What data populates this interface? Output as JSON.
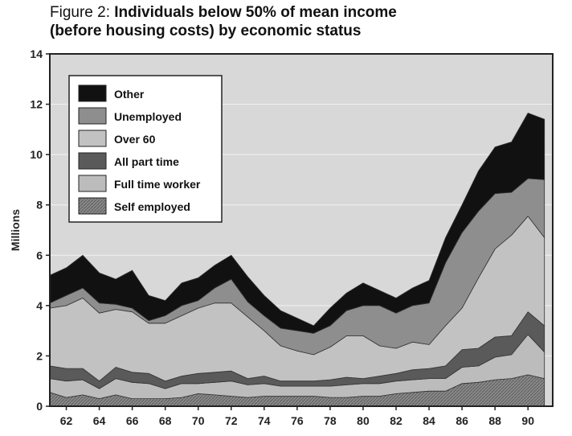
{
  "title": {
    "prefix": "Figure 2: ",
    "line1": "Individuals below 50% of mean income",
    "line2": "(before housing costs) by economic status"
  },
  "chart_data": {
    "type": "area",
    "stacked": true,
    "ylabel": "Millions",
    "xlabel": "",
    "ylim": [
      0,
      14
    ],
    "yticks": [
      0,
      2,
      4,
      6,
      8,
      10,
      12,
      14
    ],
    "xlim": [
      1961,
      1991.5
    ],
    "xtick_values": [
      1962,
      1964,
      1966,
      1968,
      1970,
      1972,
      1974,
      1976,
      1978,
      1980,
      1982,
      1984,
      1986,
      1988,
      1990
    ],
    "xtick_labels": [
      "62",
      "64",
      "66",
      "68",
      "70",
      "72",
      "74",
      "76",
      "78",
      "80",
      "82",
      "84",
      "86",
      "88",
      "90"
    ],
    "grid": true,
    "legend_position": "top-left",
    "x": [
      1961,
      1962,
      1963,
      1964,
      1965,
      1966,
      1967,
      1968,
      1969,
      1970,
      1971,
      1972,
      1973,
      1974,
      1975,
      1976,
      1977,
      1978,
      1979,
      1980,
      1981,
      1982,
      1983,
      1984,
      1985,
      1986,
      1987,
      1988,
      1989,
      1990,
      1991
    ],
    "series": [
      {
        "name": "Self employed",
        "color": "#7d7d7d",
        "values": [
          0.55,
          0.35,
          0.45,
          0.3,
          0.45,
          0.3,
          0.3,
          0.3,
          0.35,
          0.5,
          0.45,
          0.4,
          0.35,
          0.4,
          0.4,
          0.4,
          0.4,
          0.35,
          0.35,
          0.4,
          0.4,
          0.5,
          0.55,
          0.6,
          0.6,
          0.9,
          0.95,
          1.05,
          1.1,
          1.25,
          1.1
        ]
      },
      {
        "name": "Full time worker",
        "color": "#bcbcbc",
        "values": [
          0.55,
          0.65,
          0.6,
          0.4,
          0.65,
          0.65,
          0.6,
          0.4,
          0.55,
          0.4,
          0.5,
          0.6,
          0.5,
          0.5,
          0.4,
          0.4,
          0.4,
          0.45,
          0.5,
          0.5,
          0.5,
          0.5,
          0.5,
          0.5,
          0.5,
          0.65,
          0.65,
          0.9,
          0.95,
          1.6,
          1.05
        ]
      },
      {
        "name": "All part time",
        "color": "#5a5a5a",
        "values": [
          0.5,
          0.5,
          0.45,
          0.3,
          0.45,
          0.4,
          0.4,
          0.3,
          0.3,
          0.4,
          0.4,
          0.4,
          0.25,
          0.3,
          0.2,
          0.2,
          0.2,
          0.25,
          0.3,
          0.2,
          0.3,
          0.3,
          0.4,
          0.4,
          0.5,
          0.7,
          0.7,
          0.8,
          0.75,
          0.9,
          1.05
        ]
      },
      {
        "name": "Over 60",
        "color": "#c2c2c2",
        "values": [
          2.3,
          2.5,
          2.8,
          2.7,
          2.3,
          2.4,
          2.0,
          2.3,
          2.4,
          2.6,
          2.75,
          2.7,
          2.45,
          1.8,
          1.4,
          1.2,
          1.05,
          1.3,
          1.65,
          1.7,
          1.2,
          1.0,
          1.1,
          0.95,
          1.6,
          1.65,
          2.8,
          3.5,
          4.0,
          3.8,
          3.5
        ]
      },
      {
        "name": "Unemployed",
        "color": "#8e8e8e",
        "values": [
          0.2,
          0.4,
          0.4,
          0.4,
          0.2,
          0.15,
          0.1,
          0.3,
          0.4,
          0.3,
          0.6,
          0.95,
          0.6,
          0.6,
          0.7,
          0.8,
          0.85,
          0.85,
          1.0,
          1.2,
          1.6,
          1.4,
          1.45,
          1.65,
          2.5,
          3.0,
          2.65,
          2.2,
          1.7,
          1.5,
          2.3
        ]
      },
      {
        "name": "Other",
        "color": "#111111",
        "values": [
          1.1,
          1.1,
          1.3,
          1.2,
          1.0,
          1.5,
          1.0,
          0.6,
          0.9,
          0.9,
          0.9,
          0.95,
          1.0,
          0.8,
          0.7,
          0.5,
          0.3,
          0.7,
          0.7,
          0.9,
          0.6,
          0.6,
          0.7,
          0.9,
          1.0,
          1.1,
          1.6,
          1.85,
          2.0,
          2.6,
          2.4
        ]
      }
    ]
  }
}
